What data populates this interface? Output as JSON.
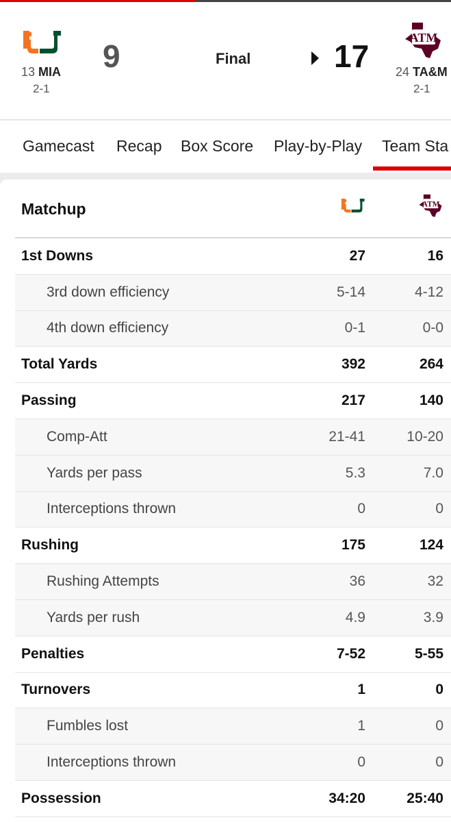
{
  "scoreboard": {
    "away": {
      "rank": "13",
      "abbr": "MIA",
      "record": "2-1",
      "score": "9",
      "logo_icon": "miami-u-logo-icon",
      "logo_colors": {
        "orange": "#f47321",
        "green": "#005030"
      }
    },
    "home": {
      "rank": "24",
      "abbr": "TA&M",
      "record": "2-1",
      "score": "17",
      "logo_icon": "texas-am-logo-icon",
      "logo_color": "#5c0025"
    },
    "status": "Final",
    "winner_indicator_icon": "triangle-right-icon"
  },
  "tabs": [
    {
      "label": "Gamecast"
    },
    {
      "label": "Recap"
    },
    {
      "label": "Box Score"
    },
    {
      "label": "Play-by-Play"
    },
    {
      "label": "Team Sta",
      "active": true
    }
  ],
  "accent_color": "#dd0000",
  "matchup": {
    "title": "Matchup",
    "rows": [
      {
        "label": "1st Downs",
        "away": "27",
        "home": "16",
        "level": "main"
      },
      {
        "label": "3rd down efficiency",
        "away": "5-14",
        "home": "4-12",
        "level": "sub"
      },
      {
        "label": "4th down efficiency",
        "away": "0-1",
        "home": "0-0",
        "level": "sub"
      },
      {
        "label": "Total Yards",
        "away": "392",
        "home": "264",
        "level": "main"
      },
      {
        "label": "Passing",
        "away": "217",
        "home": "140",
        "level": "main"
      },
      {
        "label": "Comp-Att",
        "away": "21-41",
        "home": "10-20",
        "level": "sub"
      },
      {
        "label": "Yards per pass",
        "away": "5.3",
        "home": "7.0",
        "level": "sub"
      },
      {
        "label": "Interceptions thrown",
        "away": "0",
        "home": "0",
        "level": "sub"
      },
      {
        "label": "Rushing",
        "away": "175",
        "home": "124",
        "level": "main"
      },
      {
        "label": "Rushing Attempts",
        "away": "36",
        "home": "32",
        "level": "sub"
      },
      {
        "label": "Yards per rush",
        "away": "4.9",
        "home": "3.9",
        "level": "sub"
      },
      {
        "label": "Penalties",
        "away": "7-52",
        "home": "5-55",
        "level": "main"
      },
      {
        "label": "Turnovers",
        "away": "1",
        "home": "0",
        "level": "main"
      },
      {
        "label": "Fumbles lost",
        "away": "1",
        "home": "0",
        "level": "sub"
      },
      {
        "label": "Interceptions thrown",
        "away": "0",
        "home": "0",
        "level": "sub"
      },
      {
        "label": "Possession",
        "away": "34:20",
        "home": "25:40",
        "level": "main"
      }
    ]
  }
}
